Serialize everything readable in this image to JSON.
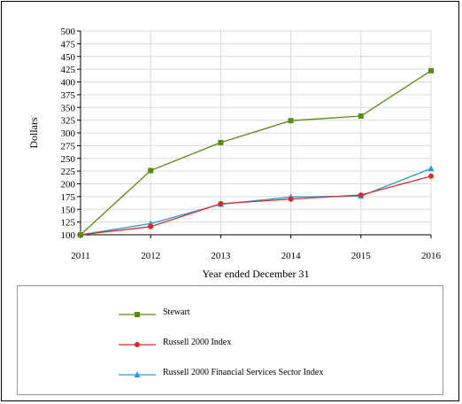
{
  "chart_data": {
    "type": "line",
    "xlabel": "Year ended December 31",
    "ylabel": "Dollars",
    "x": [
      "2011",
      "2012",
      "2013",
      "2014",
      "2015",
      "2016"
    ],
    "ylim": [
      100,
      500
    ],
    "yticks": [
      100,
      125,
      150,
      175,
      200,
      225,
      250,
      275,
      300,
      325,
      350,
      375,
      400,
      425,
      450,
      475,
      500
    ],
    "grid": true,
    "legend_position": "bottom",
    "series": [
      {
        "name": "Stewart",
        "color": "#5a8a18",
        "marker": "square",
        "values": [
          100,
          226,
          281,
          324,
          333,
          422
        ]
      },
      {
        "name": "Russell 2000 Index",
        "color": "#d62c2c",
        "marker": "circle",
        "values": [
          100,
          116,
          161,
          170,
          178,
          215
        ]
      },
      {
        "name": "Russell 2000 Financial Services Sector Index",
        "color": "#2e9ad6",
        "marker": "triangle",
        "values": [
          100,
          122,
          160,
          174,
          176,
          230
        ]
      }
    ]
  }
}
